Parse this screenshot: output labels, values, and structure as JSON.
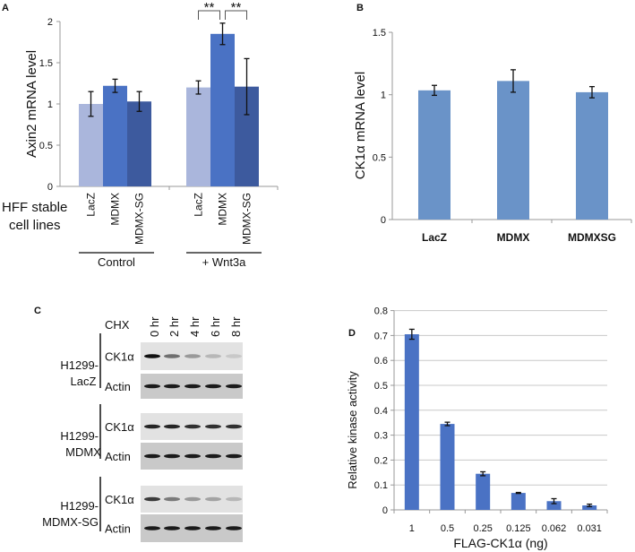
{
  "colors": {
    "a_light": "#aab6dc",
    "a_mid": "#4a72c4",
    "a_dark": "#3d5a9e",
    "b_bar": "#6a93c8",
    "d_bar": "#4a72c4",
    "axis": "#999999",
    "grid": "#c8c8c8"
  },
  "chart_data": [
    {
      "panel": "A",
      "type": "bar",
      "ylabel": "Axin2 mRNA level",
      "ylim": [
        0,
        2
      ],
      "yticks": [
        "0",
        "0.5",
        "1",
        "1.5",
        "2"
      ],
      "row_label": [
        "HFF stable",
        "cell lines"
      ],
      "groups": [
        {
          "name": "Control",
          "categories": [
            "LacZ",
            "MDMX",
            "MDMX-SG"
          ],
          "values": [
            1.0,
            1.22,
            1.03
          ],
          "errors": [
            0.15,
            0.08,
            0.12
          ]
        },
        {
          "name": "+ Wnt3a",
          "categories": [
            "LacZ",
            "MDMX",
            "MDMX-SG"
          ],
          "values": [
            1.2,
            1.85,
            1.21
          ],
          "errors": [
            0.08,
            0.13,
            0.34
          ]
        }
      ],
      "significance": [
        "**",
        "**"
      ]
    },
    {
      "panel": "B",
      "type": "bar",
      "ylabel": "CK1α mRNA level",
      "ylim": [
        0,
        1.5
      ],
      "yticks": [
        "0",
        "0.5",
        "1",
        "1.5"
      ],
      "categories": [
        "LacZ",
        "MDMX",
        "MDMXSG"
      ],
      "values": [
        1.035,
        1.11,
        1.02
      ],
      "errors": [
        0.04,
        0.09,
        0.045
      ]
    },
    {
      "panel": "C",
      "type": "table",
      "treatment": "CHX",
      "timepoints": [
        "0 hr",
        "2 hr",
        "4 hr",
        "6 hr",
        "8 hr"
      ],
      "blots": [
        {
          "cell_line": [
            "H1299-",
            "LacZ"
          ],
          "rows": [
            {
              "label": "CK1α",
              "intensity": [
                1.0,
                0.55,
                0.35,
                0.2,
                0.12
              ]
            },
            {
              "label": "Actin",
              "intensity": [
                0.95,
                0.95,
                0.95,
                0.95,
                0.95
              ]
            }
          ]
        },
        {
          "cell_line": [
            "H1299-",
            "MDMX"
          ],
          "rows": [
            {
              "label": "CK1α",
              "intensity": [
                0.9,
                0.9,
                0.85,
                0.85,
                0.85
              ]
            },
            {
              "label": "Actin",
              "intensity": [
                0.95,
                0.95,
                0.95,
                0.95,
                0.95
              ]
            }
          ]
        },
        {
          "cell_line": [
            "H1299-",
            "MDMX-SG"
          ],
          "rows": [
            {
              "label": "CK1α",
              "intensity": [
                0.8,
                0.5,
                0.35,
                0.3,
                0.2
              ]
            },
            {
              "label": "Actin",
              "intensity": [
                0.95,
                0.95,
                0.95,
                0.95,
                0.95
              ]
            }
          ]
        }
      ]
    },
    {
      "panel": "D",
      "type": "bar",
      "ylabel": "Relative kinase activity",
      "xlabel": "FLAG-CK1α (ng)",
      "ylim": [
        0,
        0.8
      ],
      "yticks": [
        "0",
        "0.1",
        "0.2",
        "0.3",
        "0.4",
        "0.5",
        "0.6",
        "0.7",
        "0.8"
      ],
      "grid": true,
      "categories": [
        "1",
        "0.5",
        "0.25",
        "0.125",
        "0.062",
        "0.031"
      ],
      "values": [
        0.705,
        0.345,
        0.145,
        0.068,
        0.035,
        0.018
      ],
      "errors": [
        0.02,
        0.007,
        0.008,
        0.002,
        0.01,
        0.005
      ]
    }
  ]
}
